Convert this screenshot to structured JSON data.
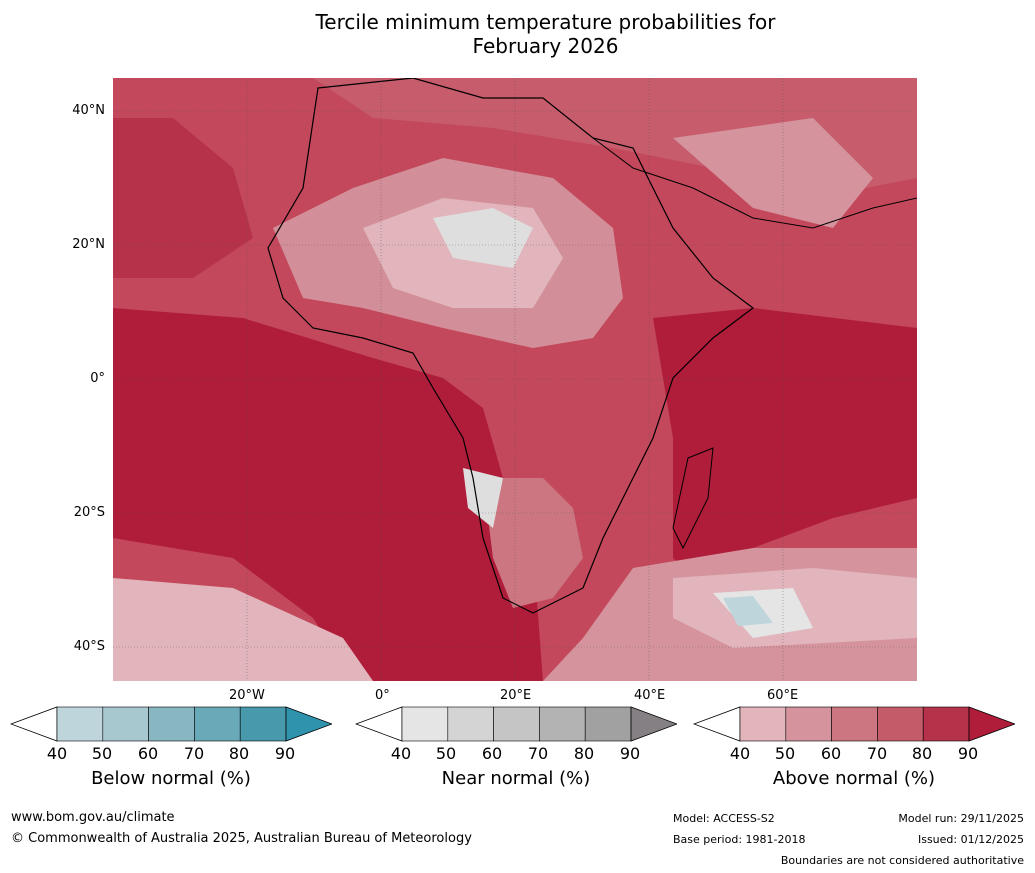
{
  "title": {
    "line1": "Tercile minimum temperature probabilities for",
    "line2": "February 2026"
  },
  "map": {
    "region": "Africa and Indian Ocean",
    "lat_labels": [
      "40°N",
      "20°N",
      "0°",
      "20°S",
      "40°S"
    ],
    "lon_labels": [
      "20°W",
      "0°",
      "20°E",
      "40°E",
      "60°E"
    ]
  },
  "colorbars": [
    {
      "title": "Below normal (%)",
      "ticks": [
        "40",
        "50",
        "60",
        "70",
        "80",
        "90"
      ],
      "colors": [
        "#bfd5dc",
        "#a6c8ce",
        "#88b6c1",
        "#6aa9b7",
        "#4899ab",
        "#2f93ad"
      ]
    },
    {
      "title": "Near normal (%)",
      "ticks": [
        "40",
        "50",
        "60",
        "70",
        "80",
        "90"
      ],
      "colors": [
        "#e5e5e5",
        "#d4d4d4",
        "#c5c5c5",
        "#b3b3b3",
        "#a1a1a1",
        "#858083"
      ]
    },
    {
      "title": "Above normal (%)",
      "ticks": [
        "40",
        "50",
        "60",
        "70",
        "80",
        "90"
      ],
      "colors": [
        "#e1b5bb",
        "#d4939d",
        "#cb7680",
        "#c35b69",
        "#b6324a",
        "#af1d3a"
      ]
    }
  ],
  "footer": {
    "website": "www.bom.gov.au/climate",
    "copyright": "© Commonwealth of Australia 2025, Australian Bureau of Meteorology",
    "model": "Model: ACCESS-S2",
    "base_period": "Base period: 1981-2018",
    "model_run": "Model run: 29/11/2025",
    "issued": "Issued: 01/12/2025",
    "disclaimer": "Boundaries are not considered authoritative"
  }
}
